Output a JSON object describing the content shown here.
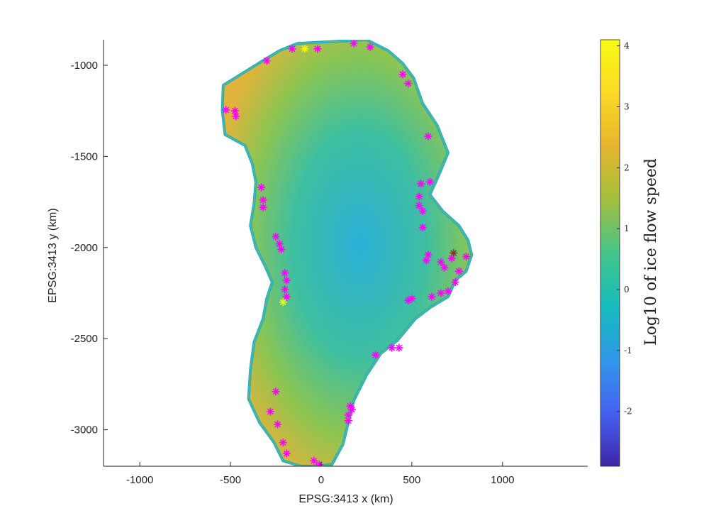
{
  "chart_data": {
    "type": "heatmap",
    "title": "",
    "xlabel": "EPSG:3413 x (km)",
    "ylabel": "EPSG:3413 y (km)",
    "xlim": [
      -1200,
      1470
    ],
    "ylim": [
      -3200,
      -860
    ],
    "xticks": [
      -1000,
      -500,
      0,
      500,
      1000
    ],
    "yticks": [
      -1000,
      -1500,
      -2000,
      -2500,
      -3000
    ],
    "grid": false,
    "colorbar": {
      "label": "Log10 of ice flow speed",
      "range": [
        -2.9,
        4.1
      ],
      "ticks": [
        4,
        3,
        2,
        1,
        0,
        -1,
        -2
      ],
      "colors": [
        "#3e26a8",
        "#4561f2",
        "#2f99e8",
        "#16bcbc",
        "#44c58a",
        "#a2bf3e",
        "#e7b52e",
        "#fbd925",
        "#f9fb15"
      ]
    },
    "outline_km": [
      [
        -540,
        -1110
      ],
      [
        -330,
        -980
      ],
      [
        -230,
        -920
      ],
      [
        -130,
        -880
      ],
      [
        60,
        -870
      ],
      [
        250,
        -860
      ],
      [
        370,
        -920
      ],
      [
        450,
        -990
      ],
      [
        510,
        -1070
      ],
      [
        560,
        -1210
      ],
      [
        640,
        -1330
      ],
      [
        700,
        -1480
      ],
      [
        650,
        -1600
      ],
      [
        600,
        -1710
      ],
      [
        670,
        -1800
      ],
      [
        760,
        -1880
      ],
      [
        810,
        -1960
      ],
      [
        830,
        -2040
      ],
      [
        800,
        -2130
      ],
      [
        740,
        -2180
      ],
      [
        700,
        -2270
      ],
      [
        600,
        -2330
      ],
      [
        520,
        -2390
      ],
      [
        420,
        -2510
      ],
      [
        330,
        -2580
      ],
      [
        250,
        -2700
      ],
      [
        180,
        -2840
      ],
      [
        150,
        -2960
      ],
      [
        120,
        -3080
      ],
      [
        60,
        -3190
      ],
      [
        -20,
        -3200
      ],
      [
        -110,
        -3200
      ],
      [
        -210,
        -3170
      ],
      [
        -260,
        -3070
      ],
      [
        -340,
        -2960
      ],
      [
        -400,
        -2830
      ],
      [
        -390,
        -2670
      ],
      [
        -370,
        -2520
      ],
      [
        -320,
        -2390
      ],
      [
        -300,
        -2280
      ],
      [
        -270,
        -2190
      ],
      [
        -310,
        -2100
      ],
      [
        -360,
        -2000
      ],
      [
        -390,
        -1880
      ],
      [
        -370,
        -1760
      ],
      [
        -360,
        -1640
      ],
      [
        -380,
        -1540
      ],
      [
        -420,
        -1440
      ],
      [
        -530,
        -1380
      ],
      [
        -545,
        -1250
      ]
    ],
    "markers": [
      {
        "name": "magenta",
        "color": "#ff00ff",
        "points": [
          [
            -300,
            -975
          ],
          [
            -160,
            -910
          ],
          [
            -20,
            -910
          ],
          [
            180,
            -880
          ],
          [
            270,
            -900
          ],
          [
            450,
            -1050
          ],
          [
            480,
            -1100
          ],
          [
            590,
            -1390
          ],
          [
            -525,
            -1245
          ],
          [
            -475,
            -1250
          ],
          [
            -470,
            -1280
          ],
          [
            -330,
            -1670
          ],
          [
            -320,
            -1740
          ],
          [
            -320,
            -1780
          ],
          [
            -250,
            -1940
          ],
          [
            -230,
            -1980
          ],
          [
            -220,
            -2010
          ],
          [
            -200,
            -2140
          ],
          [
            -190,
            -2180
          ],
          [
            -200,
            -2230
          ],
          [
            -190,
            -2270
          ],
          [
            550,
            -1650
          ],
          [
            600,
            -1640
          ],
          [
            540,
            -1720
          ],
          [
            540,
            -1770
          ],
          [
            560,
            -1800
          ],
          [
            560,
            -1890
          ],
          [
            590,
            -2040
          ],
          [
            580,
            -2070
          ],
          [
            660,
            -2080
          ],
          [
            680,
            -2110
          ],
          [
            720,
            -2060
          ],
          [
            800,
            -2050
          ],
          [
            760,
            -2130
          ],
          [
            740,
            -2190
          ],
          [
            700,
            -2240
          ],
          [
            660,
            -2250
          ],
          [
            610,
            -2270
          ],
          [
            500,
            -2280
          ],
          [
            480,
            -2290
          ],
          [
            300,
            -2590
          ],
          [
            390,
            -2550
          ],
          [
            430,
            -2550
          ],
          [
            -250,
            -2790
          ],
          [
            -280,
            -2900
          ],
          [
            -240,
            -2970
          ],
          [
            -210,
            -3070
          ],
          [
            -190,
            -3130
          ],
          [
            160,
            -2870
          ],
          [
            170,
            -2890
          ],
          [
            150,
            -2920
          ],
          [
            150,
            -2950
          ],
          [
            -40,
            -3170
          ],
          [
            -10,
            -3190
          ]
        ]
      },
      {
        "name": "yellow",
        "color": "#f5f50a",
        "points": [
          [
            -90,
            -910
          ],
          [
            -210,
            -2300
          ]
        ]
      },
      {
        "name": "brown",
        "color": "#7a3d2a",
        "points": [
          [
            730,
            -2030
          ]
        ]
      }
    ]
  }
}
